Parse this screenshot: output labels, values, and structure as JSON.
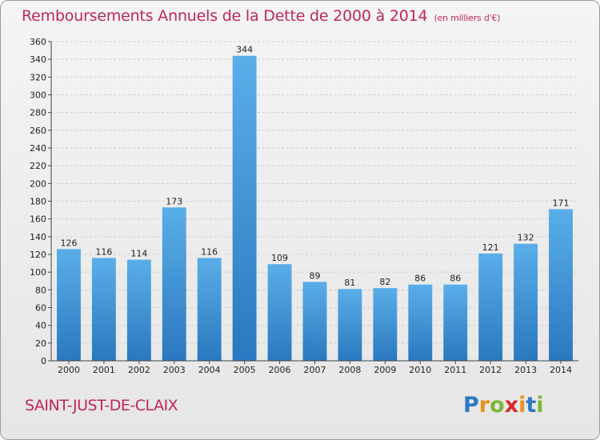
{
  "title": "Remboursements Annuels de la Dette de 2000 à 2014",
  "unit": "(en milliers d'€)",
  "commune": "SAINT-JUST-DE-CLAIX",
  "logo": {
    "letters": [
      "P",
      "r",
      "o",
      "x",
      "i",
      "t",
      "i"
    ],
    "colors": [
      "#2a7ac4",
      "#e8931e",
      "#7cb833",
      "#d92a2a",
      "#e8931e",
      "#2a7ac4",
      "#7cb833"
    ]
  },
  "colors": {
    "bar_top": "#5aaee8",
    "bar_bottom": "#2a78bf",
    "title": "#c0275a"
  },
  "chart_data": {
    "type": "bar",
    "title": "Remboursements Annuels de la Dette de 2000 à 2014",
    "xlabel": "",
    "ylabel": "",
    "categories": [
      "2000",
      "2001",
      "2002",
      "2003",
      "2004",
      "2005",
      "2006",
      "2007",
      "2008",
      "2009",
      "2010",
      "2011",
      "2012",
      "2013",
      "2014"
    ],
    "values": [
      126,
      116,
      114,
      173,
      116,
      344,
      109,
      89,
      81,
      82,
      86,
      86,
      121,
      132,
      171
    ],
    "ylim": [
      0,
      360
    ],
    "yticks": [
      0,
      20,
      40,
      60,
      80,
      100,
      120,
      140,
      160,
      180,
      200,
      220,
      240,
      260,
      280,
      300,
      320,
      340,
      360
    ],
    "grid": true,
    "legend": "none"
  }
}
